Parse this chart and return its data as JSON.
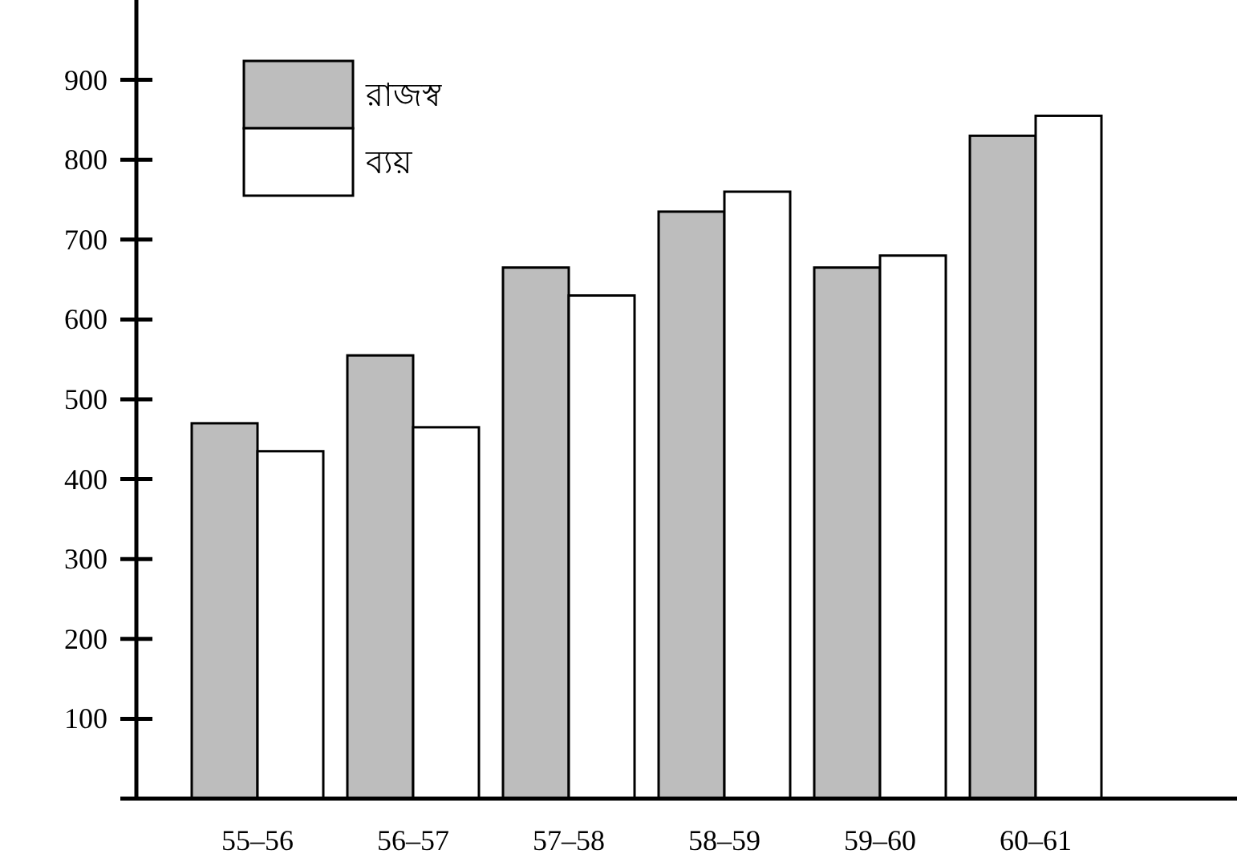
{
  "chart_data": {
    "type": "bar",
    "categories": [
      "55–56",
      "56–57",
      "57–58",
      "58–59",
      "59–60",
      "60–61"
    ],
    "series": [
      {
        "name": "রাজস্ব",
        "color": "#bdbdbd",
        "values": [
          470,
          555,
          665,
          735,
          665,
          830
        ]
      },
      {
        "name": "ব্যয়",
        "color": "#ffffff",
        "values": [
          435,
          465,
          630,
          760,
          680,
          855
        ]
      }
    ],
    "ylim": [
      0,
      1000
    ],
    "yticks": [
      {
        "value": 100,
        "label": "100"
      },
      {
        "value": 200,
        "label": "200"
      },
      {
        "value": 300,
        "label": "300"
      },
      {
        "value": 400,
        "label": "400"
      },
      {
        "value": 500,
        "label": "500"
      },
      {
        "value": 600,
        "label": "600"
      },
      {
        "value": 700,
        "label": "700"
      },
      {
        "value": 800,
        "label": "800"
      },
      {
        "value": 900,
        "label": "900"
      }
    ],
    "legend": "top left",
    "grid": false
  }
}
